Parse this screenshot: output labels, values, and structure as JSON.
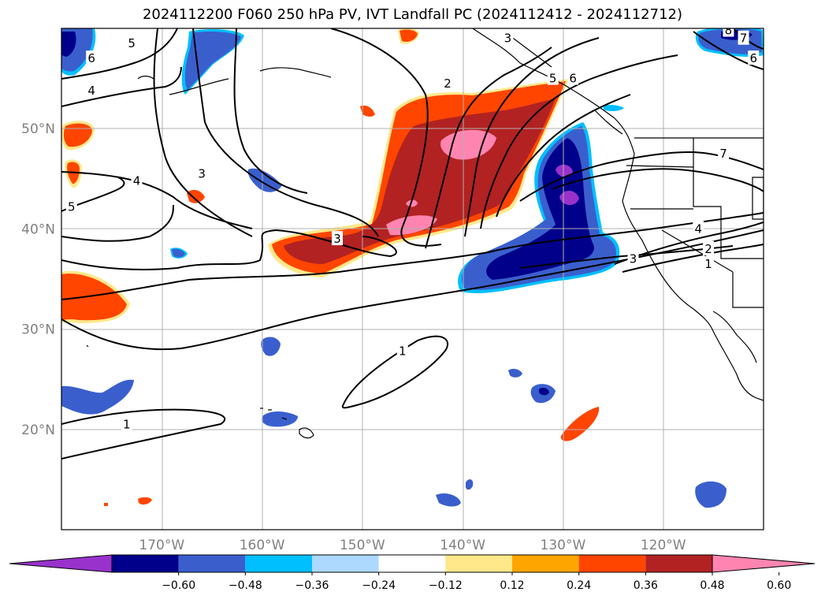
{
  "title": "2024112200 F060 250 hPa PV, IVT Landfall PC (2024112412 - 2024112712)",
  "map": {
    "projection": "PlateCarree",
    "extent": {
      "lon_min": -180,
      "lon_max": -110,
      "lat_min": 10,
      "lat_max": 60
    },
    "gridlines": true,
    "lat_ticks": [
      {
        "value": 20,
        "label": "20°N"
      },
      {
        "value": 30,
        "label": "30°N"
      },
      {
        "value": 40,
        "label": "40°N"
      },
      {
        "value": 50,
        "label": "50°N"
      }
    ],
    "lon_ticks": [
      {
        "value": -170,
        "label": "170°W"
      },
      {
        "value": -160,
        "label": "160°W"
      },
      {
        "value": -150,
        "label": "150°W"
      },
      {
        "value": -140,
        "label": "140°W"
      },
      {
        "value": -130,
        "label": "130°W"
      },
      {
        "value": -120,
        "label": "120°W"
      }
    ],
    "contour_labels": [
      {
        "text": "6",
        "lon": -177.0,
        "lat": 57.0
      },
      {
        "text": "5",
        "lon": -173.0,
        "lat": 58.5
      },
      {
        "text": "4",
        "lon": -177.0,
        "lat": 53.8
      },
      {
        "text": "4",
        "lon": -172.5,
        "lat": 44.8
      },
      {
        "text": "5",
        "lon": -179.0,
        "lat": 42.2
      },
      {
        "text": "3",
        "lon": -166.0,
        "lat": 45.5
      },
      {
        "text": "2",
        "lon": -141.5,
        "lat": 54.5
      },
      {
        "text": "3",
        "lon": -135.5,
        "lat": 59.0
      },
      {
        "text": "5",
        "lon": -131.0,
        "lat": 55.0
      },
      {
        "text": "6",
        "lon": -129.0,
        "lat": 55.0
      },
      {
        "text": "7",
        "lon": -114.0,
        "lat": 47.5
      },
      {
        "text": "8",
        "lon": -113.5,
        "lat": 59.8
      },
      {
        "text": "7",
        "lon": -112.0,
        "lat": 59.0
      },
      {
        "text": "6",
        "lon": -111.0,
        "lat": 57.0
      },
      {
        "text": "3",
        "lon": -152.5,
        "lat": 39.0
      },
      {
        "text": "4",
        "lon": -116.5,
        "lat": 40.0
      },
      {
        "text": "3",
        "lon": -123.0,
        "lat": 37.0
      },
      {
        "text": "2",
        "lon": -115.5,
        "lat": 38.0
      },
      {
        "text": "1",
        "lon": -115.5,
        "lat": 36.5
      },
      {
        "text": "1",
        "lon": -146.0,
        "lat": 27.8
      },
      {
        "text": "1",
        "lon": -173.5,
        "lat": 20.5
      }
    ]
  },
  "colorbar": {
    "labels": [
      "−0.60",
      "−0.48",
      "−0.36",
      "−0.24",
      "−0.12",
      "0.12",
      "0.24",
      "0.36",
      "0.48",
      "0.60"
    ],
    "colors": [
      "#9932CC",
      "#00008B",
      "#3A5FCD",
      "#00BFFF",
      "#ADD8FF",
      "#FFFFFF",
      "#FFE88A",
      "#FFA500",
      "#FF4500",
      "#B22222",
      "#FF85B0"
    ],
    "extend": "both"
  },
  "colors": {
    "land_outline": "#000000",
    "grid": "#b0b0b0",
    "contour": "#000000"
  }
}
